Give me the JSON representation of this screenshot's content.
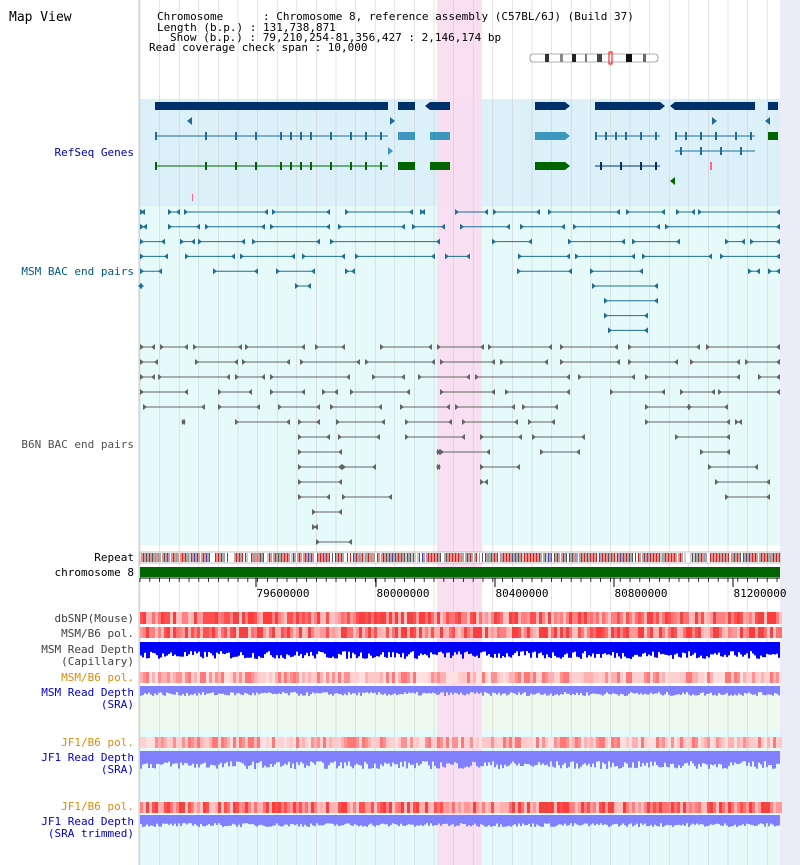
{
  "view_title": "Map View",
  "info": {
    "chromosome": "Chromosome      : Chromosome 8, reference assembly (C57BL/6J) (Build 37)",
    "length": "Length (b.p.) : 131,738,871",
    "show": "Show (b.p.) : 79,210,254-81,356,427 : 2,146,174 bp",
    "coverage": "Read coverage check span : 10,000"
  },
  "tracks": {
    "refseq": "RefSeq Genes",
    "msm_bac": "MSM BAC end pairs",
    "b6n_bac": "B6N BAC end pairs",
    "repeat": "Repeat",
    "chromosome": "chromosome 8",
    "dbsnp": "dbSNP(Mouse)",
    "msm_pol": "MSM/B6 pol.",
    "msm_depth_cap_1": "MSM Read Depth",
    "msm_depth_cap_2": "(Capillary)",
    "msm_pol_sra": "MSM/B6 pol.",
    "msm_depth_sra_1": "MSM Read Depth",
    "msm_depth_sra_2": "(SRA)",
    "jf1_pol": "JF1/B6 pol.",
    "jf1_depth_1": "JF1 Read Depth",
    "jf1_depth_2": "(SRA)",
    "jf1_pol_trim": "JF1/B6 pol.",
    "jf1_trim_1": "JF1 Read Depth",
    "jf1_trim_2": "(SRA trimmed)"
  },
  "axis_ticks": [
    "79600000",
    "80000000",
    "80400000",
    "80800000",
    "81200000"
  ],
  "colors": {
    "highlight": "#fadcf0",
    "refseq_bg": "#dcf0fa",
    "bac_bg": "#e6fafa",
    "gene_dark": "#00306a",
    "gene_blue": "#3c96be",
    "gene_green": "#006400",
    "msm_bac": "#1e6e96",
    "b6n_bac": "#646464",
    "depth_blue": "#0000ff",
    "depth_light": "#8080ff"
  }
}
